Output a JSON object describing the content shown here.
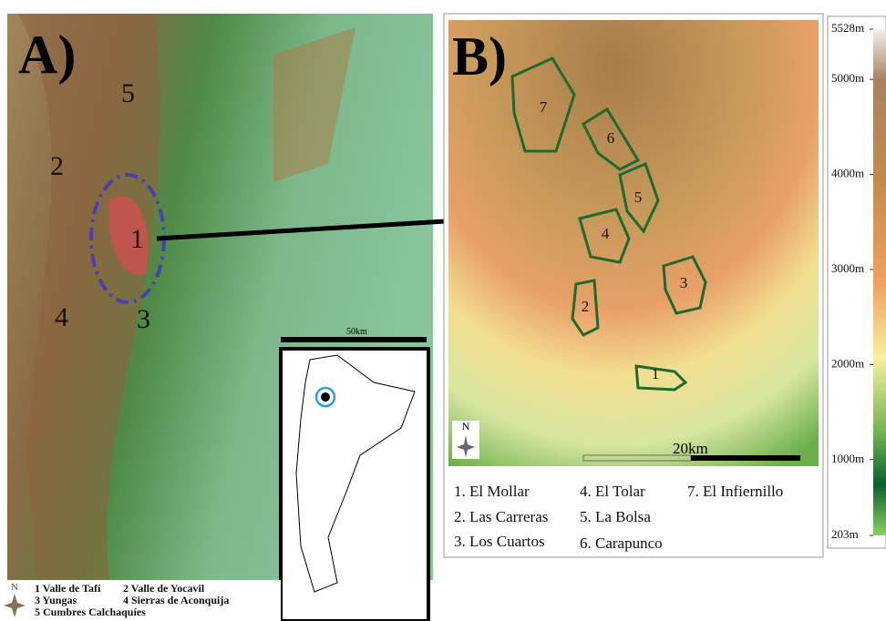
{
  "panel_a": {
    "label": "A)",
    "regions": [
      "1",
      "2",
      "3",
      "4",
      "5"
    ],
    "scale": "50km",
    "north": "N",
    "legend": [
      "1 Valle de Tafí",
      "2 Valle de Yocavil",
      "3 Yungas",
      "4 Sierras de Aconquija",
      "5 Cumbres Calchaquíes"
    ]
  },
  "panel_b": {
    "label": "B)",
    "sites": [
      "1",
      "2",
      "3",
      "4",
      "5",
      "6",
      "7"
    ],
    "scale": "20km",
    "north": "N",
    "legend": [
      "1. El Mollar",
      "2. Las Carreras",
      "3. Los Cuartos",
      "4. El Tolar",
      "5. La Bolsa",
      "6. Carapunco",
      "7. El Infiernillo"
    ]
  },
  "elevation_scale": {
    "range": [
      203,
      5528
    ],
    "ticks": [
      {
        "value": 5528,
        "label": "5528m"
      },
      {
        "value": 5000,
        "label": "5000m"
      },
      {
        "value": 4000,
        "label": "4000m"
      },
      {
        "value": 3000,
        "label": "3000m"
      },
      {
        "value": 2000,
        "label": "2000m"
      },
      {
        "value": 1000,
        "label": "1000m"
      },
      {
        "value": 203,
        "label": "203m"
      }
    ]
  }
}
